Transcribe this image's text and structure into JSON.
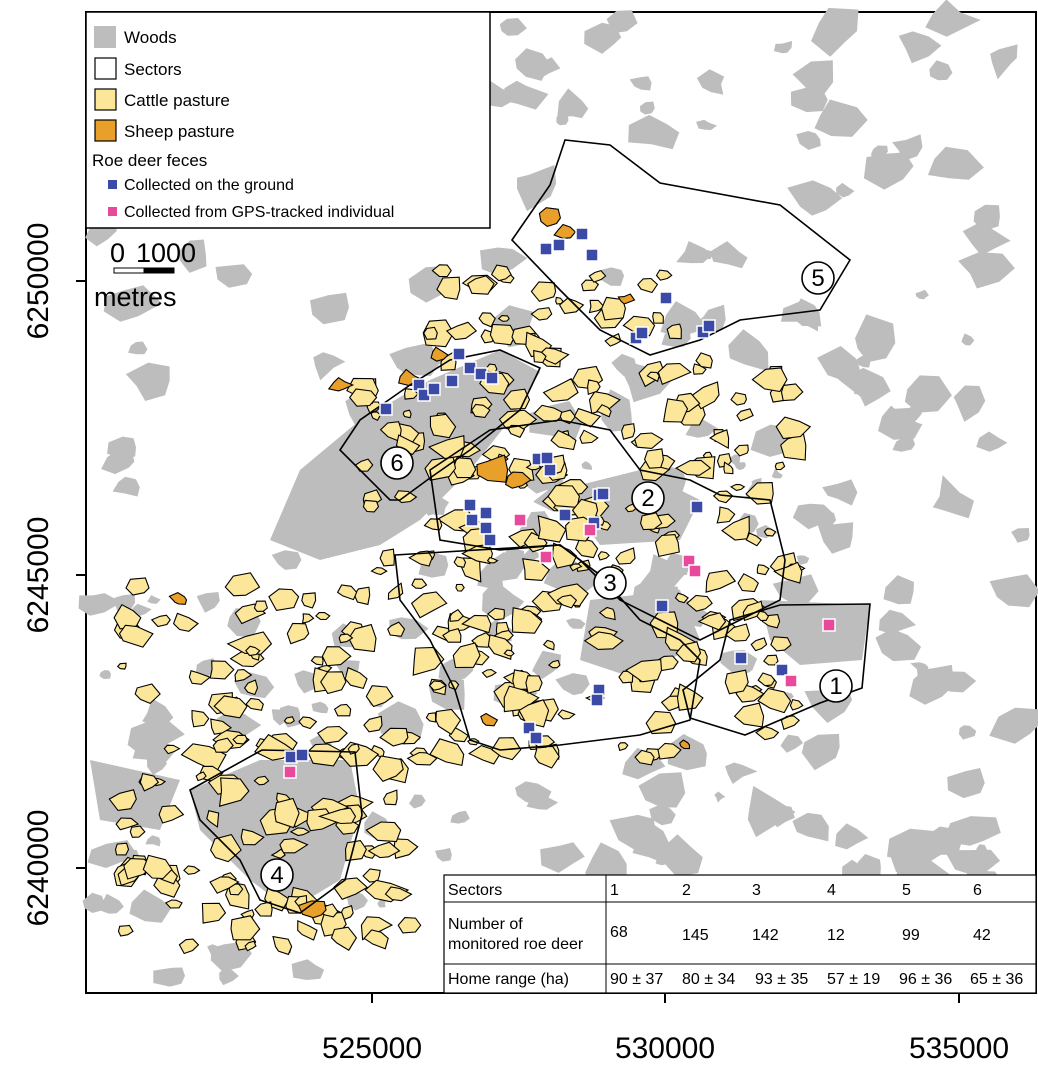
{
  "legend": {
    "woods": "Woods",
    "sectors": "Sectors",
    "cattle": "Cattle pasture",
    "sheep": "Sheep pasture",
    "feces_title": "Roe deer feces",
    "ground": "Collected on the ground",
    "gps": "Collected from GPS-tracked individual"
  },
  "scale_bar": {
    "zero": "0",
    "value": "1000",
    "unit": "metres"
  },
  "axes": {
    "x_ticks": [
      "525000",
      "530000",
      "535000"
    ],
    "y_ticks": [
      "6240000",
      "6245000",
      "6250000"
    ]
  },
  "sectors": [
    "1",
    "2",
    "3",
    "4",
    "5",
    "6"
  ],
  "table": {
    "header": [
      "Sectors",
      "1",
      "2",
      "3",
      "4",
      "5",
      "6"
    ],
    "row_deer": [
      "Number of monitored roe deer",
      "68",
      "145",
      "142",
      "12",
      "99",
      "42"
    ],
    "row_deer_lines": [
      "Number of",
      "monitored roe deer"
    ],
    "row_home": [
      "Home range (ha)",
      "90 ± 37",
      "80 ± 34",
      "93 ± 35",
      "57 ± 19",
      "96 ± 36",
      "65 ± 36"
    ]
  },
  "colors": {
    "woods": "#bdbdbd",
    "cattle": "#fbe699",
    "sheep": "#e8a02a",
    "ground": "#3a4aa6",
    "gps": "#e8499a"
  }
}
